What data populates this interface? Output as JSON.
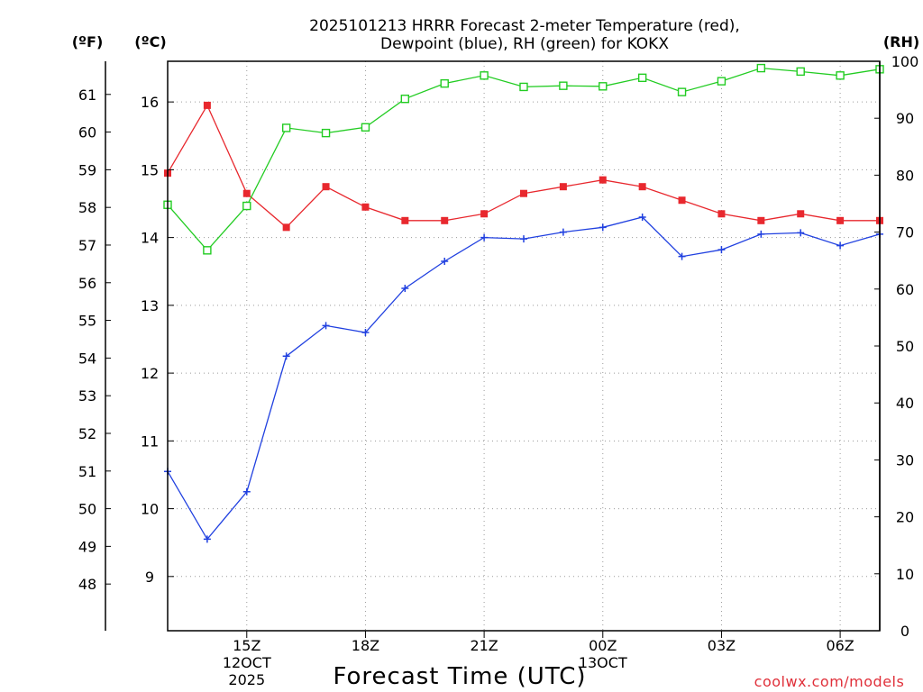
{
  "chart_data": {
    "type": "line",
    "title_line1": "2025101213 HRRR Forecast 2-meter Temperature (red),",
    "title_line2": "Dewpoint (blue), RH (green) for KOKX",
    "xlabel": "Forecast Time (UTC)",
    "credit": "coolwx.com/models",
    "unit_f": "(ºF)",
    "unit_c": "(ºC)",
    "unit_rh": "(RH)",
    "hours": [
      13,
      14,
      15,
      16,
      17,
      18,
      19,
      20,
      21,
      22,
      23,
      24,
      25,
      26,
      27,
      28,
      29,
      30,
      31
    ],
    "x_ticks": [
      {
        "hour": 15,
        "lines": [
          "15Z",
          "12OCT",
          "2025"
        ]
      },
      {
        "hour": 18,
        "lines": [
          "18Z"
        ]
      },
      {
        "hour": 21,
        "lines": [
          "21Z"
        ]
      },
      {
        "hour": 24,
        "lines": [
          "00Z",
          "13OCT"
        ]
      },
      {
        "hour": 27,
        "lines": [
          "03Z"
        ]
      },
      {
        "hour": 30,
        "lines": [
          "06Z"
        ]
      }
    ],
    "xlim": [
      13,
      31
    ],
    "y_celsius": {
      "lim": [
        8.2,
        16.6
      ],
      "ticks": [
        9,
        10,
        11,
        12,
        13,
        14,
        15,
        16
      ]
    },
    "y_fahrenheit": {
      "ticks": [
        48,
        49,
        50,
        51,
        52,
        53,
        54,
        55,
        56,
        57,
        58,
        59,
        60,
        61
      ]
    },
    "y_rh": {
      "lim": [
        0,
        100
      ],
      "ticks": [
        0,
        10,
        20,
        30,
        40,
        50,
        60,
        70,
        80,
        90,
        100
      ]
    },
    "series": [
      {
        "name": "Temperature",
        "unit": "C",
        "color": "#e8282e",
        "marker": "filled-square",
        "values": [
          14.95,
          15.95,
          14.65,
          14.15,
          14.75,
          14.45,
          14.25,
          14.25,
          14.35,
          14.65,
          14.75,
          14.85,
          14.75,
          14.55,
          14.35,
          14.25,
          14.35,
          14.25,
          14.25
        ]
      },
      {
        "name": "Dewpoint",
        "unit": "C",
        "color": "#2040e0",
        "marker": "plus",
        "values": [
          10.55,
          9.55,
          10.25,
          12.25,
          12.7,
          12.6,
          13.25,
          13.65,
          14.0,
          13.98,
          14.08,
          14.15,
          14.3,
          13.72,
          13.82,
          14.05,
          14.07,
          13.88,
          14.05
        ]
      },
      {
        "name": "RH",
        "unit": "%",
        "color": "#22cc22",
        "marker": "open-square",
        "values": [
          74.8,
          66.8,
          74.6,
          88.3,
          87.4,
          88.4,
          93.4,
          96.1,
          97.5,
          95.5,
          95.7,
          95.6,
          97.1,
          94.6,
          96.5,
          98.8,
          98.2,
          97.5,
          98.6
        ]
      }
    ]
  }
}
